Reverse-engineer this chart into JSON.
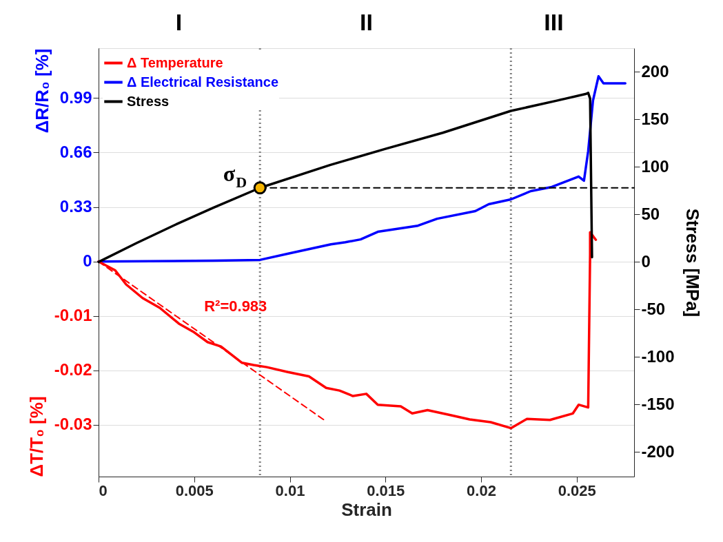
{
  "chart_data": {
    "type": "line",
    "xlabel": "Strain",
    "ylabel": "ΔR/R₀ [%]",
    "y3label": "ΔT/T₀ [%]",
    "y2label": "Stress [MPa]",
    "xlim": [
      0,
      0.028
    ],
    "xticks": [
      0,
      0.005,
      0.01,
      0.015,
      0.02,
      0.025
    ],
    "ylim": [
      -1.3,
      1.29
    ],
    "yticks": [
      0,
      0.33,
      0.66,
      0.99
    ],
    "y3lim": [
      -0.0395,
      0.0392
    ],
    "y3ticks": [
      -0.03,
      -0.02,
      -0.01
    ],
    "y2lim": [
      -226,
      225
    ],
    "y2ticks": [
      -200,
      -150,
      -100,
      -50,
      0,
      50,
      100,
      150,
      200
    ],
    "grid": "y",
    "legend": "top left",
    "ref_lines": [
      {
        "axis": "x",
        "value": 0.00844,
        "color": "#808080",
        "line_style": "dotted"
      },
      {
        "axis": "x",
        "value": 0.02156,
        "color": "#808080",
        "line_style": "dotted"
      }
    ],
    "annotations": [
      "I",
      "II",
      "III"
    ],
    "series": [
      {
        "name": "Δ Temperature",
        "color": "#ff0000",
        "axis": "y3",
        "x": [
          0,
          0.00087,
          0.00144,
          0.0023,
          0.0032,
          0.0042,
          0.005,
          0.0057,
          0.0064,
          0.0075,
          0.0081,
          0.0088,
          0.0099,
          0.011,
          0.0119,
          0.0126,
          0.0133,
          0.014,
          0.0146,
          0.0158,
          0.0164,
          0.0172,
          0.0184,
          0.0194,
          0.0205,
          0.02156,
          0.0224,
          0.0236,
          0.0248,
          0.0251,
          0.0256,
          0.0257,
          0.0257,
          0.026
        ],
        "values": [
          0,
          -0.0016,
          -0.0042,
          -0.0067,
          -0.0085,
          -0.0114,
          -0.013,
          -0.0148,
          -0.0156,
          -0.0186,
          -0.019,
          -0.0194,
          -0.0203,
          -0.0211,
          -0.0232,
          -0.0237,
          -0.0247,
          -0.0243,
          -0.0263,
          -0.0266,
          -0.0279,
          -0.0273,
          -0.0282,
          -0.029,
          -0.0295,
          -0.0306,
          -0.0289,
          -0.0291,
          -0.0279,
          -0.0263,
          -0.0268,
          0.0013,
          0.0054,
          0.004
        ]
      },
      {
        "name": "Δ Electrical Resistance",
        "color": "#0000ff",
        "axis": "y",
        "x": [
          0,
          0.006,
          0.00844,
          0.01,
          0.01215,
          0.0129,
          0.0137,
          0.0146,
          0.0167,
          0.0177,
          0.0197,
          0.0204,
          0.02156,
          0.0226,
          0.0237,
          0.0251,
          0.02538,
          0.0256,
          0.02585,
          0.02614,
          0.0264,
          0.02754
        ],
        "values": [
          0,
          0.005,
          0.01,
          0.05,
          0.104,
          0.117,
          0.134,
          0.18,
          0.217,
          0.259,
          0.305,
          0.347,
          0.376,
          0.426,
          0.451,
          0.514,
          0.489,
          0.668,
          0.973,
          1.12,
          1.078,
          1.078
        ]
      },
      {
        "name": "Stress",
        "color": "#000000",
        "axis": "y2",
        "x": [
          0,
          0.002,
          0.004,
          0.006,
          0.00844,
          0.0121,
          0.015,
          0.018,
          0.02156,
          0.024,
          0.0255,
          0.0256,
          0.0257,
          0.0258
        ],
        "values": [
          0,
          20,
          39,
          57,
          78,
          102,
          119,
          136,
          159,
          170,
          177,
          178,
          172,
          5
        ]
      },
      {
        "name": "R²=0.983",
        "type": "line",
        "line_style": "dashed",
        "color": "#ff0000",
        "axis": "y3",
        "x": [
          0,
          0.01179
        ],
        "values": [
          0,
          -0.0291
        ]
      },
      {
        "type": "line",
        "line_style": "dashed",
        "color": "#000000",
        "axis": "y2",
        "x": [
          0.00844,
          0.028
        ],
        "values": [
          78,
          78
        ]
      },
      {
        "name": "σ$_{D}$",
        "type": "scatter",
        "marker": "circle",
        "color": "#f5b400",
        "axis": "y2",
        "x": [
          0.00844
        ],
        "values": [
          78
        ]
      }
    ]
  }
}
